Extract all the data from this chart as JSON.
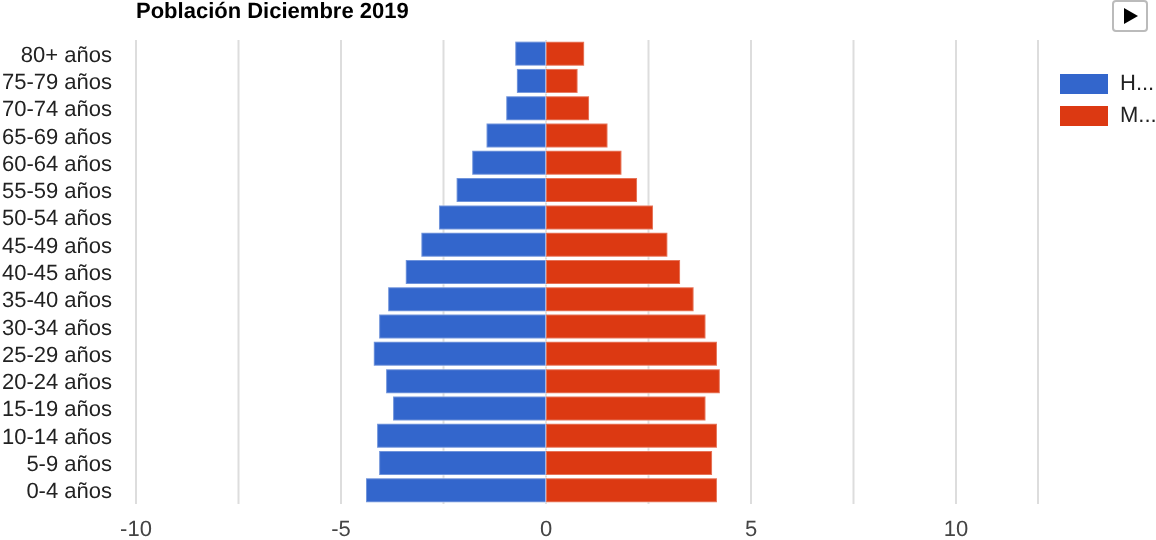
{
  "chart_data": {
    "type": "bar",
    "title": "Población Diciembre 2019",
    "orientation": "horizontal",
    "stacked": true,
    "categories": [
      "80+ años",
      "75-79 años",
      "70-74 años",
      "65-69 años",
      "60-64 años",
      "55-59 años",
      "50-54 años",
      "45-49 años",
      "40-45 años",
      "35-40 años",
      "30-34 años",
      "25-29 años",
      "20-24 años",
      "15-19 años",
      "10-14 años",
      "5-9 años",
      "0-4 años"
    ],
    "series": [
      {
        "name": "H...",
        "color": "#3366cc",
        "values": [
          -0.75,
          -0.71,
          -0.97,
          -1.45,
          -1.8,
          -2.18,
          -2.61,
          -3.04,
          -3.42,
          -3.85,
          -4.07,
          -4.2,
          -3.9,
          -3.73,
          -4.12,
          -4.07,
          -4.39
        ]
      },
      {
        "name": "M...",
        "color": "#dc3912",
        "values": [
          0.93,
          0.77,
          1.05,
          1.5,
          1.84,
          2.22,
          2.61,
          2.96,
          3.27,
          3.6,
          3.89,
          4.17,
          4.24,
          3.89,
          4.17,
          4.05,
          4.17
        ]
      }
    ],
    "xlim": [
      -10,
      12
    ],
    "xticks": [
      -10,
      {
        "value": -7.5,
        "label": null
      },
      -5,
      {
        "value": -2.5,
        "label": null
      },
      0,
      {
        "value": 2.5,
        "label": null
      },
      5,
      {
        "value": 7.5,
        "label": null
      },
      10
    ],
    "grid": "x",
    "legend": "right"
  }
}
